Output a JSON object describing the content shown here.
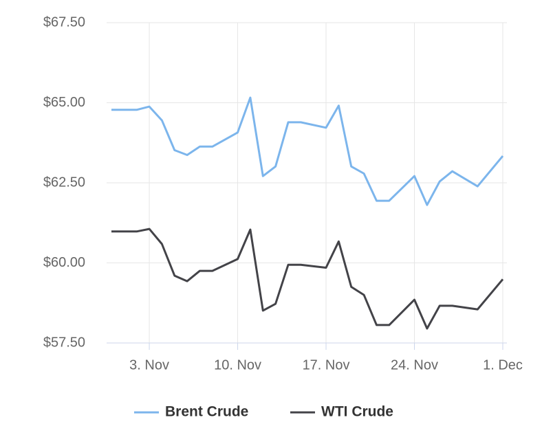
{
  "chart_data": {
    "type": "line",
    "x": [
      "10-31",
      "11-02",
      "11-03",
      "11-04",
      "11-05",
      "11-06",
      "11-07",
      "11-08",
      "11-10",
      "11-11",
      "11-12",
      "11-13",
      "11-14",
      "11-15",
      "11-17",
      "11-18",
      "11-19",
      "11-20",
      "11-21",
      "11-22",
      "11-24",
      "11-25",
      "11-26",
      "11-27",
      "11-29",
      "12-01"
    ],
    "series": [
      {
        "name": "Brent Crude",
        "color": "#7cb5ec",
        "values": [
          64.78,
          64.78,
          64.88,
          64.45,
          63.52,
          63.37,
          63.63,
          63.63,
          64.07,
          65.16,
          62.71,
          63.01,
          64.39,
          64.39,
          64.22,
          64.91,
          63.01,
          62.79,
          61.94,
          61.94,
          62.71,
          61.81,
          62.54,
          62.86,
          62.39,
          63.34
        ]
      },
      {
        "name": "WTI Crude",
        "color": "#434348",
        "values": [
          60.98,
          60.98,
          61.06,
          60.59,
          59.6,
          59.43,
          59.75,
          59.75,
          60.12,
          61.04,
          58.51,
          58.72,
          59.94,
          59.94,
          59.85,
          60.67,
          59.25,
          59.0,
          58.06,
          58.06,
          58.85,
          57.95,
          58.66,
          58.66,
          58.55,
          59.49
        ]
      }
    ],
    "xlim": [
      "10-31",
      "12-01"
    ],
    "xticks": [
      {
        "value": "11-03",
        "label": "3. Nov"
      },
      {
        "value": "11-10",
        "label": "10. Nov"
      },
      {
        "value": "11-17",
        "label": "17. Nov"
      },
      {
        "value": "11-24",
        "label": "24. Nov"
      },
      {
        "value": "12-01",
        "label": "1. Dec"
      }
    ],
    "ylim": [
      57.5,
      67.5
    ],
    "yticks": [
      {
        "value": 57.5,
        "label": "$57.50"
      },
      {
        "value": 60,
        "label": "$60.00"
      },
      {
        "value": 62.5,
        "label": "$62.50"
      },
      {
        "value": 65,
        "label": "$65.00"
      },
      {
        "value": 67.5,
        "label": "$67.50"
      }
    ],
    "grid": true,
    "legend": "bottom"
  }
}
